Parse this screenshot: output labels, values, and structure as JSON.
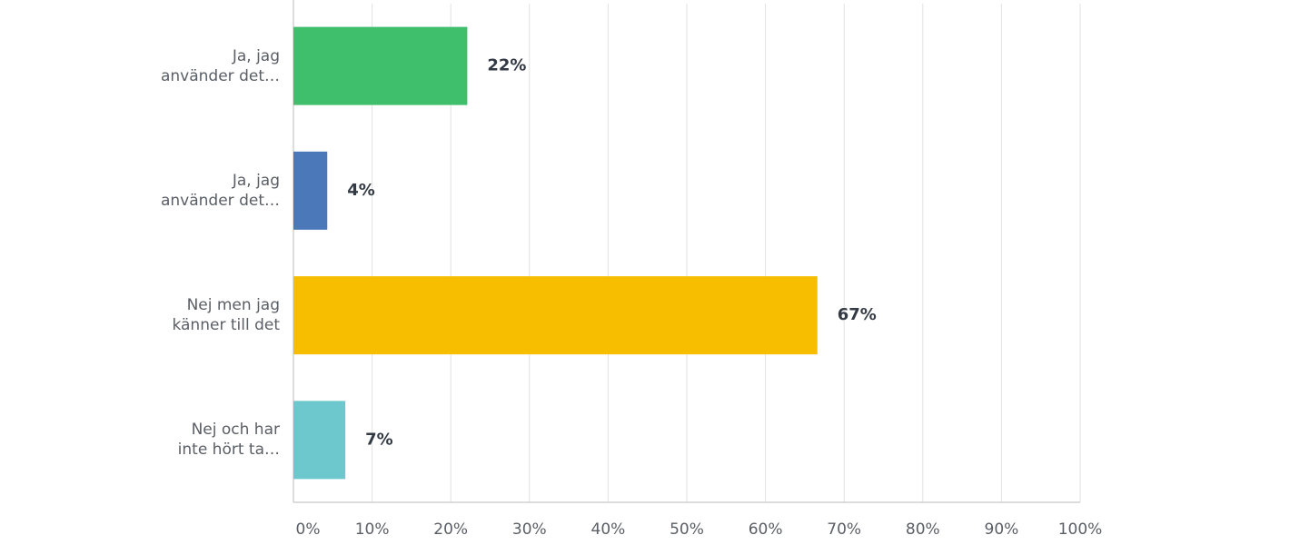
{
  "chart_data": {
    "type": "hbar",
    "categories": [
      "Ja, jag\nanvänder det…",
      "Ja, jag\nanvänder det…",
      "Nej men jag\nkänner till det",
      "Nej och har\ninte hört ta…"
    ],
    "values": [
      22.1,
      4.3,
      66.6,
      6.6
    ],
    "value_labels": [
      "22%",
      "4%",
      "67%",
      "7%"
    ],
    "colors": [
      "#3fbf6b",
      "#4a78b8",
      "#f7be00",
      "#6cc8cc"
    ],
    "xlim": [
      0,
      100
    ],
    "xticks": [
      {
        "value": 0,
        "label": "0%"
      },
      {
        "value": 10,
        "label": "10%"
      },
      {
        "value": 20,
        "label": "20%"
      },
      {
        "value": 30,
        "label": "30%"
      },
      {
        "value": 40,
        "label": "40%"
      },
      {
        "value": 50,
        "label": "50%"
      },
      {
        "value": 60,
        "label": "60%"
      },
      {
        "value": 70,
        "label": "70%"
      },
      {
        "value": 80,
        "label": "80%"
      },
      {
        "value": 90,
        "label": "90%"
      },
      {
        "value": 100,
        "label": "100%"
      }
    ],
    "grid": true
  }
}
